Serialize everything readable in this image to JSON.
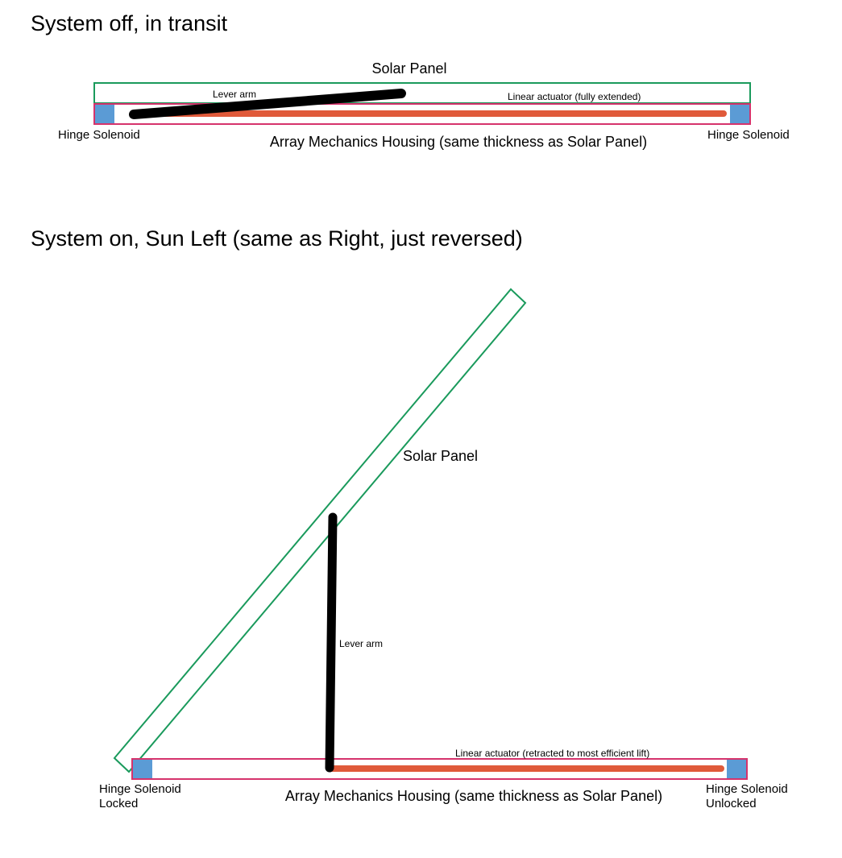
{
  "colors": {
    "panel_outline": "#1a9a5c",
    "housing_outline": "#d6336c",
    "actuator": "#e05a3a",
    "solenoid": "#5b9bd5",
    "lever": "#000000"
  },
  "diagram_top": {
    "heading": "System off, in transit",
    "solar_panel_label": "Solar Panel",
    "lever_arm_label": "Lever arm",
    "actuator_label": "Linear actuator (fully extended)",
    "left_solenoid_label": "Hinge Solenoid",
    "right_solenoid_label": "Hinge Solenoid",
    "housing_label": "Array Mechanics Housing (same thickness as Solar Panel)"
  },
  "diagram_bottom": {
    "heading": "System on, Sun Left (same as Right, just reversed)",
    "solar_panel_label": "Solar Panel",
    "lever_arm_label": "Lever arm",
    "actuator_label": "Linear actuator (retracted to most efficient lift)",
    "left_solenoid_label": "Hinge Solenoid",
    "left_solenoid_state": "Locked",
    "right_solenoid_label": "Hinge Solenoid",
    "right_solenoid_state": "Unlocked",
    "housing_label": "Array Mechanics Housing (same thickness as Solar Panel)"
  }
}
